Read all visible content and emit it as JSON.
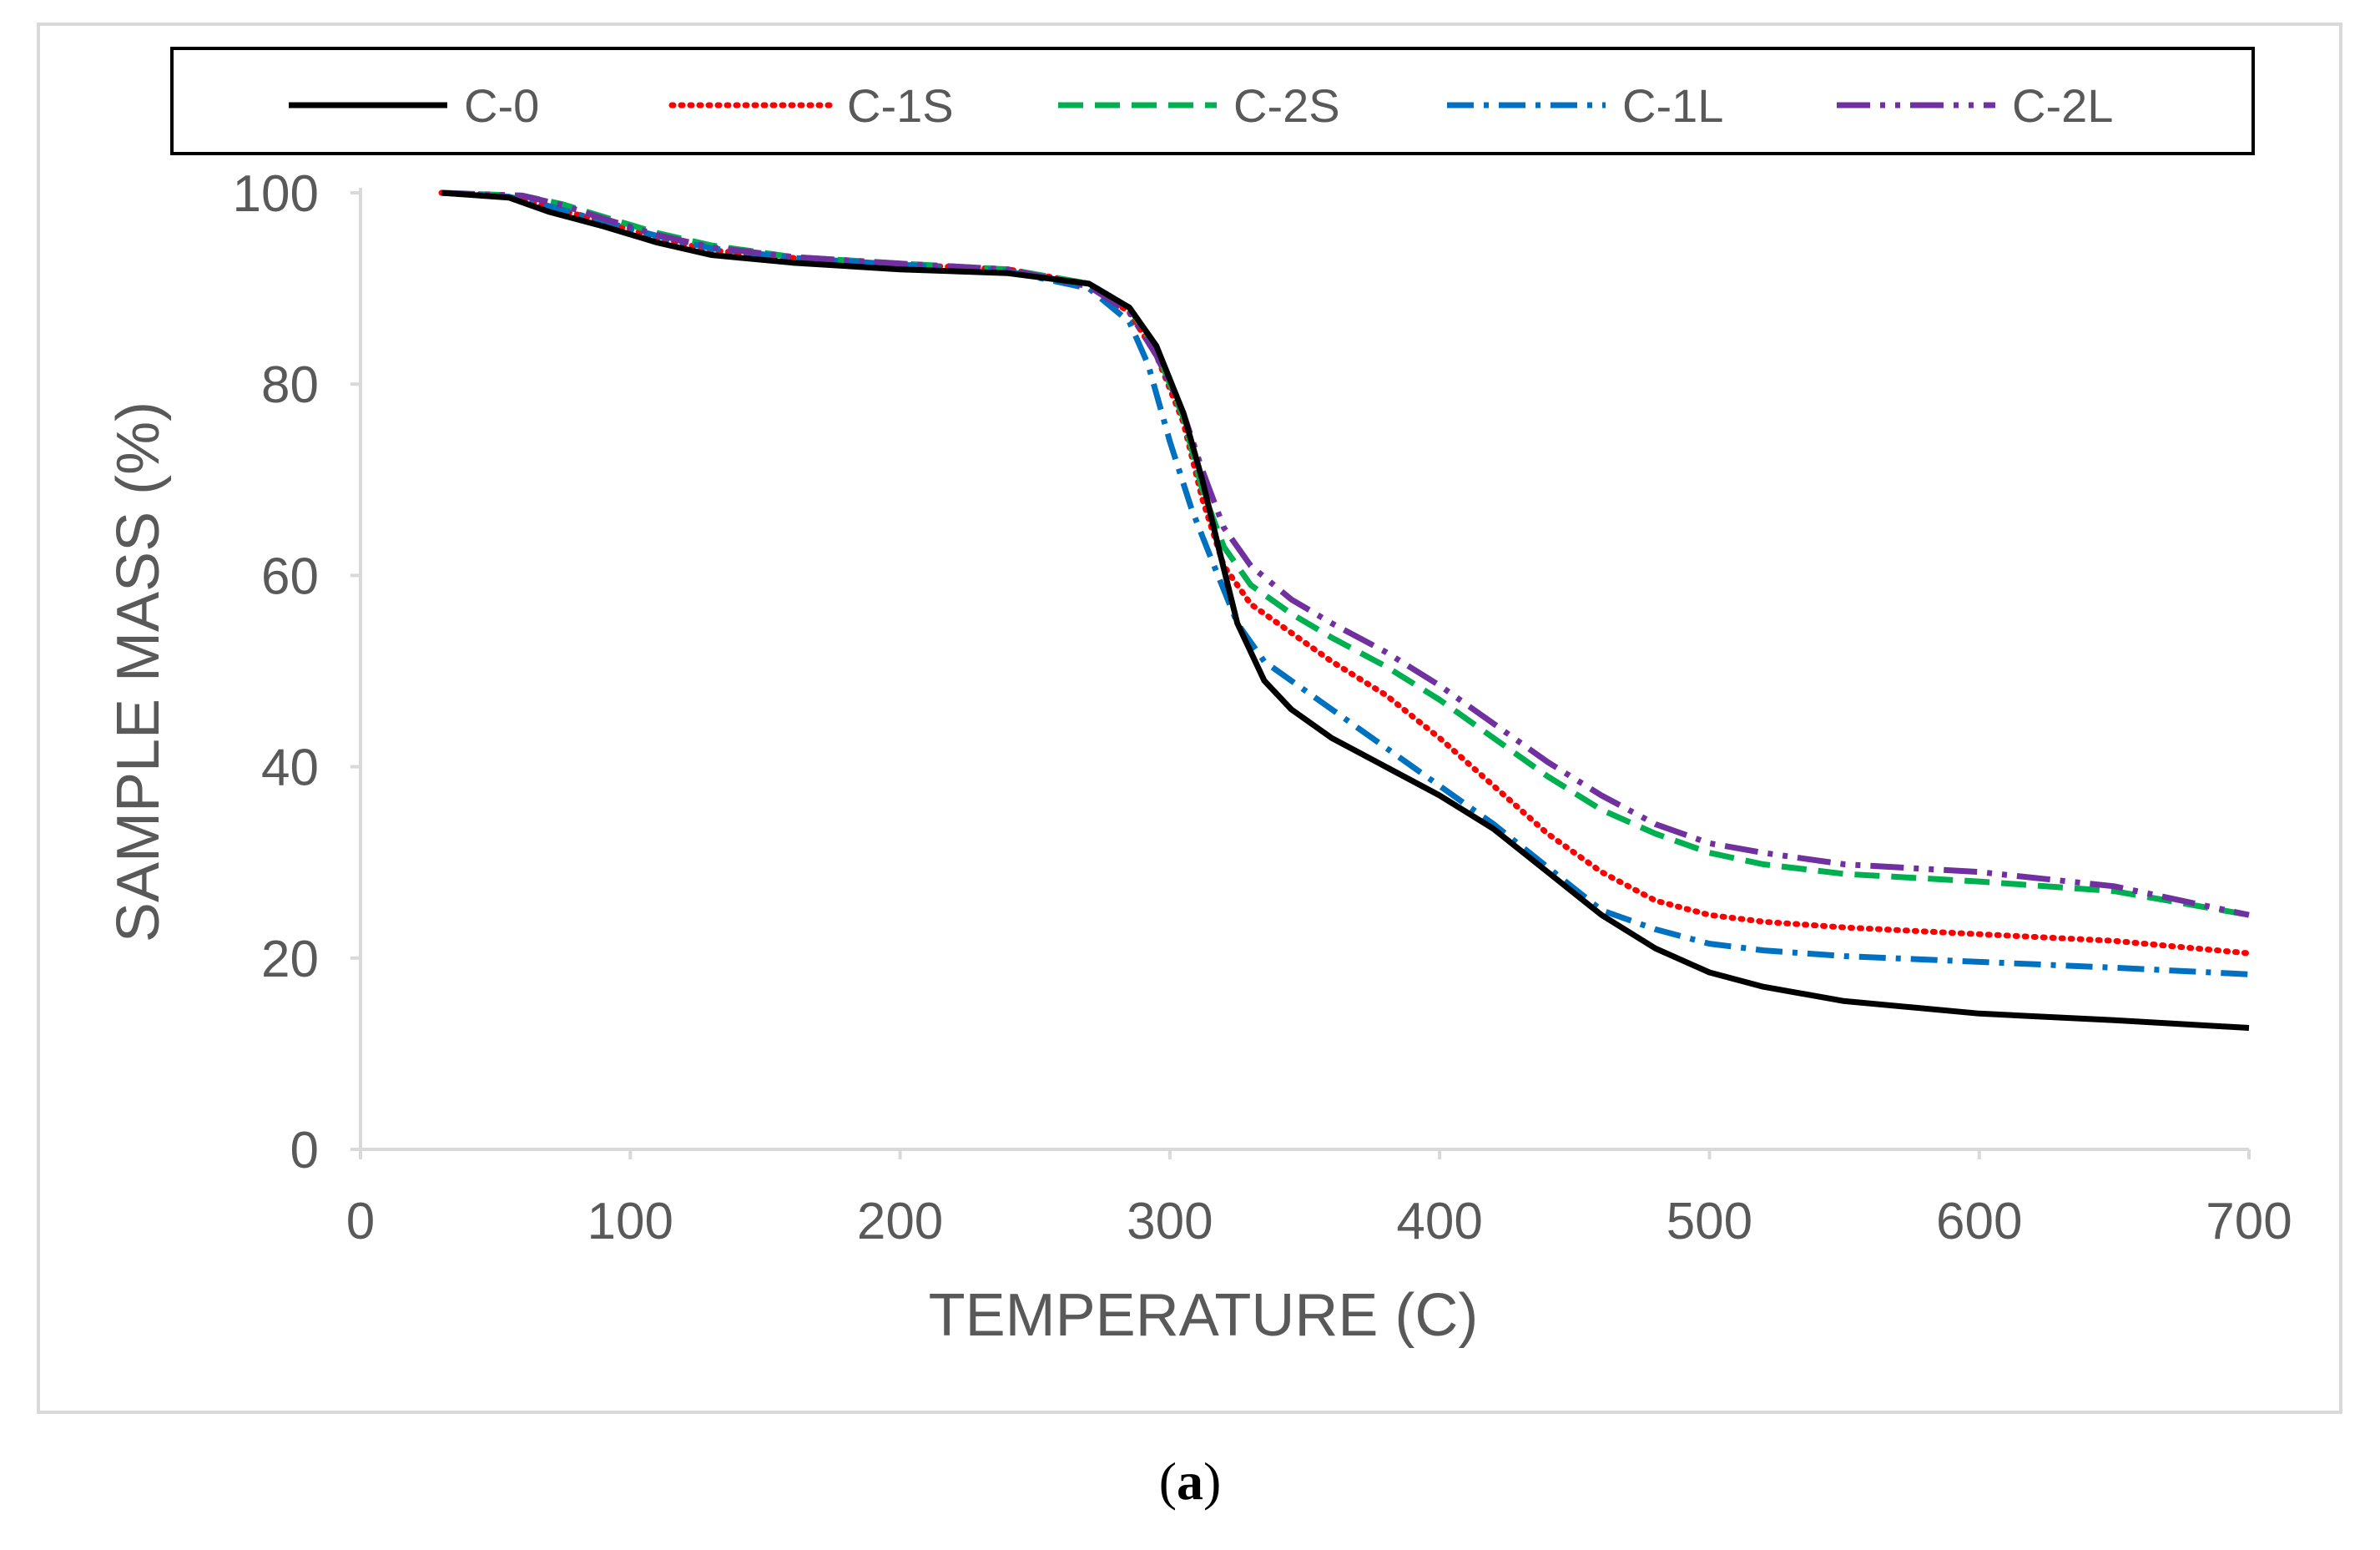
{
  "chart_data": {
    "type": "line",
    "title": "",
    "xlabel": "TEMPERATURE (C)",
    "ylabel": "SAMPLE MASS (%)",
    "xlim": [
      0,
      700
    ],
    "ylim": [
      0,
      100
    ],
    "xticks": [
      0,
      100,
      200,
      300,
      400,
      500,
      600,
      700
    ],
    "yticks": [
      0,
      20,
      40,
      60,
      80,
      100
    ],
    "grid": false,
    "legend_position": "top",
    "series": [
      {
        "name": "C-0",
        "color": "#000000",
        "dash": "solid",
        "x": [
          30,
          55,
          70,
          90,
          110,
          130,
          160,
          200,
          240,
          270,
          285,
          295,
          305,
          312,
          318,
          325,
          335,
          345,
          360,
          380,
          400,
          420,
          440,
          460,
          480,
          500,
          520,
          550,
          600,
          650,
          700
        ],
        "y": [
          100,
          99.5,
          98,
          96.5,
          94.8,
          93.5,
          92.7,
          92,
          91.6,
          90.5,
          88,
          84,
          77,
          70,
          63,
          55,
          49,
          46,
          43,
          40,
          37,
          33.5,
          29,
          24.5,
          21,
          18.5,
          17,
          15.5,
          14.2,
          13.5,
          12.7
        ]
      },
      {
        "name": "C-1S",
        "color": "#ff0000",
        "dash": "dot",
        "x": [
          30,
          55,
          70,
          90,
          110,
          130,
          160,
          200,
          240,
          270,
          285,
          295,
          305,
          312,
          320,
          330,
          340,
          360,
          380,
          400,
          420,
          440,
          460,
          480,
          500,
          520,
          550,
          600,
          650,
          700
        ],
        "y": [
          100,
          99.6,
          98.5,
          97,
          95.3,
          94,
          93.2,
          92.5,
          92,
          90.5,
          87.5,
          83,
          76,
          68,
          61,
          57,
          55,
          51,
          47.5,
          43,
          38,
          33,
          29,
          26,
          24.5,
          23.8,
          23.2,
          22.5,
          21.8,
          20.5
        ]
      },
      {
        "name": "C-2S",
        "color": "#00b050",
        "dash": "dash",
        "x": [
          30,
          60,
          75,
          90,
          110,
          130,
          160,
          200,
          240,
          270,
          285,
          295,
          305,
          312,
          320,
          330,
          345,
          360,
          380,
          400,
          420,
          440,
          460,
          480,
          500,
          520,
          550,
          600,
          650,
          700
        ],
        "y": [
          100,
          99.7,
          98.8,
          97.5,
          95.8,
          94.5,
          93.3,
          92.6,
          92,
          90.5,
          88,
          83.5,
          76.5,
          69,
          63,
          59,
          56,
          53.5,
          50.5,
          47,
          43,
          39,
          35.5,
          33,
          31,
          29.8,
          28.8,
          28,
          27,
          24.5
        ]
      },
      {
        "name": "C-1L",
        "color": "#0070c0",
        "dash": "dashdot",
        "x": [
          30,
          55,
          70,
          90,
          110,
          130,
          160,
          200,
          240,
          270,
          285,
          292,
          300,
          308,
          315,
          325,
          335,
          345,
          360,
          380,
          400,
          420,
          440,
          460,
          480,
          500,
          520,
          550,
          600,
          650,
          700
        ],
        "y": [
          100,
          99.6,
          98.6,
          97,
          95.5,
          94.2,
          93.2,
          92.5,
          91.8,
          90,
          86.5,
          82,
          74,
          67,
          62,
          55,
          51,
          49,
          46,
          42,
          38,
          34,
          29.5,
          25,
          23,
          21.5,
          20.8,
          20.2,
          19.6,
          19,
          18.3
        ]
      },
      {
        "name": "C-2L",
        "color": "#7030a0",
        "dash": "dashdotdot",
        "x": [
          30,
          60,
          75,
          90,
          110,
          130,
          160,
          200,
          240,
          270,
          285,
          295,
          305,
          312,
          320,
          330,
          345,
          360,
          380,
          400,
          420,
          440,
          460,
          480,
          500,
          520,
          550,
          600,
          650,
          700
        ],
        "y": [
          100,
          99.7,
          98.7,
          97.3,
          95.6,
          94.3,
          93.3,
          92.6,
          92,
          90.2,
          87.5,
          83,
          77,
          71,
          65,
          61,
          57.5,
          55,
          52,
          48.5,
          44.5,
          40.5,
          37,
          34,
          32,
          31,
          29.8,
          29,
          27.5,
          24.5
        ]
      }
    ]
  },
  "caption": {
    "open": "(",
    "letter": "a",
    "close": ")"
  }
}
